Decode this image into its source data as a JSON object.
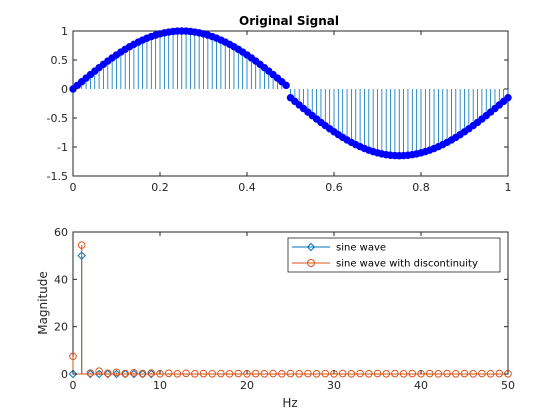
{
  "colors": {
    "sine": "#0072BD",
    "discontinuity": "#D95319",
    "stem_marker": "#0000FF",
    "axis": "#262626",
    "legend_border": "#262626"
  },
  "chart_data": [
    {
      "type": "stem",
      "title": "Original Signal",
      "xlabel": "",
      "ylabel": "",
      "xlim": [
        0,
        1
      ],
      "ylim": [
        -1.5,
        1
      ],
      "xticks": [
        0,
        0.2,
        0.4,
        0.6,
        0.8,
        1
      ],
      "xtick_labels": [
        "0",
        "0.2",
        "0.4",
        "0.6",
        "0.8",
        "1"
      ],
      "yticks": [
        -1.5,
        -1,
        -0.5,
        0,
        0.5,
        1
      ],
      "ytick_labels": [
        "-1.5",
        "-1",
        "-0.5",
        "0",
        "0.5",
        "1"
      ],
      "grid": false,
      "series": [
        {
          "signal": "amplitude 1 sine wave of frequency 1 Hz sampled every 0.01 s over 0 to 1, with a downward offset of 0.15 applied for t >= 0.5",
          "sample_step": 0.01,
          "amplitude": 1,
          "frequency_hz": 1,
          "discontinuity_at": 0.5,
          "offset_after_discontinuity": -0.15,
          "marker": "filled circle",
          "color": "#0000FF"
        }
      ]
    },
    {
      "type": "stem",
      "title": "",
      "xlabel": "Hz",
      "ylabel": "Magnitude",
      "xlim": [
        0,
        50
      ],
      "ylim": [
        0,
        60
      ],
      "xticks": [
        0,
        10,
        20,
        30,
        40,
        50
      ],
      "xtick_labels": [
        "0",
        "10",
        "20",
        "30",
        "40",
        "50"
      ],
      "yticks": [
        0,
        20,
        40,
        60
      ],
      "ytick_labels": [
        "0",
        "20",
        "40",
        "60"
      ],
      "grid": false,
      "legend": "top-right",
      "series": [
        {
          "name": "sine wave",
          "color": "#0072BD",
          "marker": "diamond",
          "x": [
            0,
            1,
            2,
            3,
            4,
            5,
            6,
            7,
            8,
            9
          ],
          "values": [
            0,
            50,
            0,
            0,
            0,
            0,
            0,
            0,
            0,
            0
          ]
        },
        {
          "name": "sine wave with discontinuity",
          "color": "#D95319",
          "marker": "circle",
          "x": [
            0,
            1,
            2,
            3,
            4,
            5,
            6,
            7,
            8,
            9,
            10,
            11,
            12,
            13,
            14,
            15,
            16,
            17,
            18,
            19,
            20,
            21,
            22,
            23,
            24,
            25,
            26,
            27,
            28,
            29,
            30,
            31,
            32,
            33,
            34,
            35,
            36,
            37,
            38,
            39,
            40,
            41,
            42,
            43,
            44,
            45,
            46,
            47,
            48,
            49,
            50
          ],
          "values": [
            7.5,
            54.5,
            0.4,
            1.2,
            0.3,
            0.7,
            0.2,
            0.5,
            0.2,
            0.4,
            0.1,
            0.3,
            0.1,
            0.3,
            0.1,
            0.2,
            0.1,
            0.2,
            0.1,
            0.2,
            0.1,
            0.2,
            0.1,
            0.2,
            0.1,
            0.2,
            0.1,
            0.2,
            0.1,
            0.2,
            0.1,
            0.2,
            0.1,
            0.2,
            0.1,
            0.2,
            0.1,
            0.2,
            0.1,
            0.2,
            0.1,
            0.2,
            0.1,
            0.2,
            0.1,
            0.2,
            0.1,
            0.2,
            0.1,
            0.2,
            0.1
          ]
        }
      ]
    }
  ]
}
